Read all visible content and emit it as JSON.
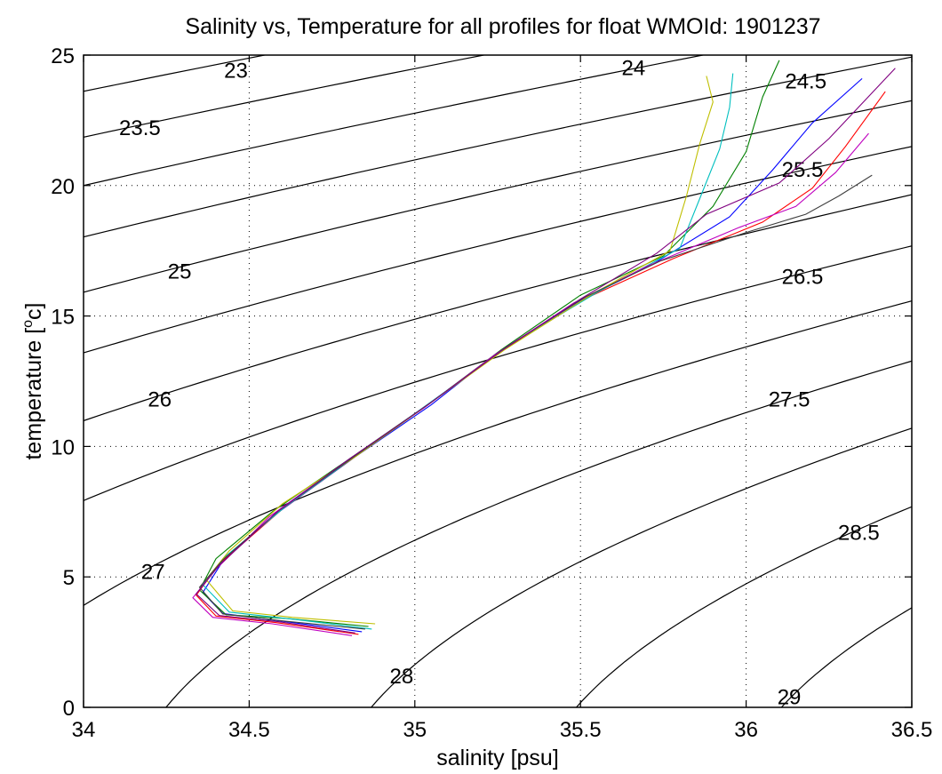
{
  "chart_data": {
    "type": "line",
    "title": "Salinity vs, Temperature for all profiles for float WMOId: 1901237",
    "xlabel": "salinity [psu]",
    "ylabel_main": "temperature [",
    "ylabel_sup": "o",
    "ylabel_tail": "c]",
    "xlim": [
      34,
      36.5
    ],
    "ylim": [
      0,
      25
    ],
    "xticks": [
      34,
      34.5,
      35,
      35.5,
      36,
      36.5
    ],
    "xtick_labels": [
      "34",
      "34.5",
      "35",
      "35.5",
      "36",
      "36.5"
    ],
    "yticks": [
      0,
      5,
      10,
      15,
      20,
      25
    ],
    "ytick_labels": [
      "0",
      "5",
      "10",
      "15",
      "20",
      "25"
    ],
    "grid": true,
    "density_contours": {
      "levels": [
        23,
        23.5,
        24,
        24.5,
        25,
        25.5,
        26,
        26.5,
        27,
        27.5,
        28,
        28.5,
        29
      ],
      "labels": [
        {
          "text": "23",
          "s": 34.46,
          "t": 24.4
        },
        {
          "text": "23.5",
          "s": 34.17,
          "t": 22.2
        },
        {
          "text": "24",
          "s": 35.66,
          "t": 24.5
        },
        {
          "text": "24.5",
          "s": 36.18,
          "t": 24.0
        },
        {
          "text": "25",
          "s": 34.29,
          "t": 16.7
        },
        {
          "text": "25.5",
          "s": 36.17,
          "t": 20.6
        },
        {
          "text": "26",
          "s": 34.23,
          "t": 11.8
        },
        {
          "text": "26.5",
          "s": 36.17,
          "t": 16.5
        },
        {
          "text": "27",
          "s": 34.21,
          "t": 5.2
        },
        {
          "text": "27.5",
          "s": 36.13,
          "t": 11.8
        },
        {
          "text": "28",
          "s": 34.96,
          "t": 1.2
        },
        {
          "text": "28.5",
          "s": 36.34,
          "t": 6.7
        },
        {
          "text": "29",
          "s": 36.13,
          "t": 0.4
        }
      ]
    },
    "series": [
      {
        "values": [
          [
            34.84,
            2.9
          ],
          [
            34.6,
            3.3
          ],
          [
            34.42,
            3.6
          ],
          [
            34.36,
            4.4
          ],
          [
            34.42,
            5.6
          ],
          [
            34.58,
            7.4
          ],
          [
            34.82,
            9.6
          ],
          [
            35.05,
            11.6
          ],
          [
            35.25,
            13.6
          ],
          [
            35.5,
            15.6
          ],
          [
            35.72,
            17.0
          ],
          [
            35.95,
            18.8
          ],
          [
            36.08,
            20.6
          ],
          [
            36.2,
            22.4
          ],
          [
            36.35,
            24.1
          ]
        ]
      },
      {
        "values": [
          [
            34.86,
            3.1
          ],
          [
            34.62,
            3.4
          ],
          [
            34.43,
            3.55
          ],
          [
            34.35,
            4.5
          ],
          [
            34.4,
            5.7
          ],
          [
            34.57,
            7.5
          ],
          [
            34.8,
            9.5
          ],
          [
            35.05,
            11.7
          ],
          [
            35.26,
            13.7
          ],
          [
            35.5,
            15.8
          ],
          [
            35.75,
            17.3
          ],
          [
            35.9,
            19.2
          ],
          [
            36.0,
            21.3
          ],
          [
            36.05,
            23.4
          ],
          [
            36.1,
            24.8
          ]
        ]
      },
      {
        "values": [
          [
            34.83,
            2.8
          ],
          [
            34.58,
            3.25
          ],
          [
            34.4,
            3.5
          ],
          [
            34.34,
            4.3
          ],
          [
            34.41,
            5.5
          ],
          [
            34.6,
            7.6
          ],
          [
            34.83,
            9.7
          ],
          [
            35.06,
            11.8
          ],
          [
            35.28,
            13.8
          ],
          [
            35.52,
            15.7
          ],
          [
            35.78,
            17.2
          ],
          [
            36.05,
            18.6
          ],
          [
            36.2,
            19.9
          ],
          [
            36.3,
            21.5
          ],
          [
            36.42,
            23.6
          ]
        ]
      },
      {
        "values": [
          [
            34.87,
            3.0
          ],
          [
            34.65,
            3.35
          ],
          [
            34.44,
            3.65
          ],
          [
            34.36,
            4.7
          ],
          [
            34.43,
            5.8
          ],
          [
            34.61,
            7.7
          ],
          [
            34.84,
            9.8
          ],
          [
            35.07,
            11.9
          ],
          [
            35.3,
            14.0
          ],
          [
            35.55,
            15.9
          ],
          [
            35.8,
            17.6
          ],
          [
            35.86,
            19.5
          ],
          [
            35.92,
            21.4
          ],
          [
            35.95,
            23.0
          ],
          [
            35.96,
            24.3
          ]
        ]
      },
      {
        "values": [
          [
            34.81,
            2.75
          ],
          [
            34.57,
            3.2
          ],
          [
            34.39,
            3.45
          ],
          [
            34.33,
            4.2
          ],
          [
            34.4,
            5.3
          ],
          [
            34.56,
            7.3
          ],
          [
            34.79,
            9.4
          ],
          [
            35.03,
            11.5
          ],
          [
            35.24,
            13.5
          ],
          [
            35.48,
            15.5
          ],
          [
            35.7,
            16.9
          ],
          [
            35.98,
            18.4
          ],
          [
            36.15,
            19.2
          ],
          [
            36.27,
            20.5
          ],
          [
            36.37,
            22.0
          ]
        ]
      },
      {
        "values": [
          [
            34.88,
            3.2
          ],
          [
            34.63,
            3.45
          ],
          [
            34.45,
            3.7
          ],
          [
            34.37,
            4.9
          ],
          [
            34.44,
            6.0
          ],
          [
            34.6,
            7.8
          ],
          [
            34.82,
            9.6
          ],
          [
            35.04,
            11.6
          ],
          [
            35.27,
            13.7
          ],
          [
            35.53,
            15.8
          ],
          [
            35.77,
            17.5
          ],
          [
            35.82,
            19.6
          ],
          [
            35.86,
            21.6
          ],
          [
            35.9,
            23.2
          ],
          [
            35.88,
            24.2
          ]
        ]
      },
      {
        "values": [
          [
            34.85,
            3.0
          ],
          [
            34.61,
            3.3
          ],
          [
            34.42,
            3.58
          ],
          [
            34.35,
            4.6
          ],
          [
            34.42,
            5.65
          ],
          [
            34.59,
            7.55
          ],
          [
            34.81,
            9.55
          ],
          [
            35.05,
            11.7
          ],
          [
            35.27,
            13.75
          ],
          [
            35.51,
            15.7
          ],
          [
            35.74,
            17.1
          ],
          [
            36.0,
            18.2
          ],
          [
            36.18,
            18.9
          ],
          [
            36.28,
            19.6
          ],
          [
            36.38,
            20.4
          ]
        ]
      },
      {
        "values": [
          [
            34.82,
            2.85
          ],
          [
            34.59,
            3.28
          ],
          [
            34.41,
            3.52
          ],
          [
            34.34,
            4.35
          ],
          [
            34.41,
            5.45
          ],
          [
            34.58,
            7.45
          ],
          [
            34.8,
            9.5
          ],
          [
            35.04,
            11.6
          ],
          [
            35.26,
            13.65
          ],
          [
            35.5,
            15.65
          ],
          [
            35.73,
            17.4
          ],
          [
            35.88,
            18.9
          ],
          [
            36.1,
            20.1
          ],
          [
            36.25,
            21.8
          ],
          [
            36.45,
            24.5
          ]
        ]
      }
    ],
    "series_colors": [
      "#0000ff",
      "#008000",
      "#ff0000",
      "#00bfbf",
      "#bf00bf",
      "#bfbf00",
      "#404040",
      "#800080"
    ],
    "contour_color": "#000000",
    "grid_color": "#000000"
  }
}
